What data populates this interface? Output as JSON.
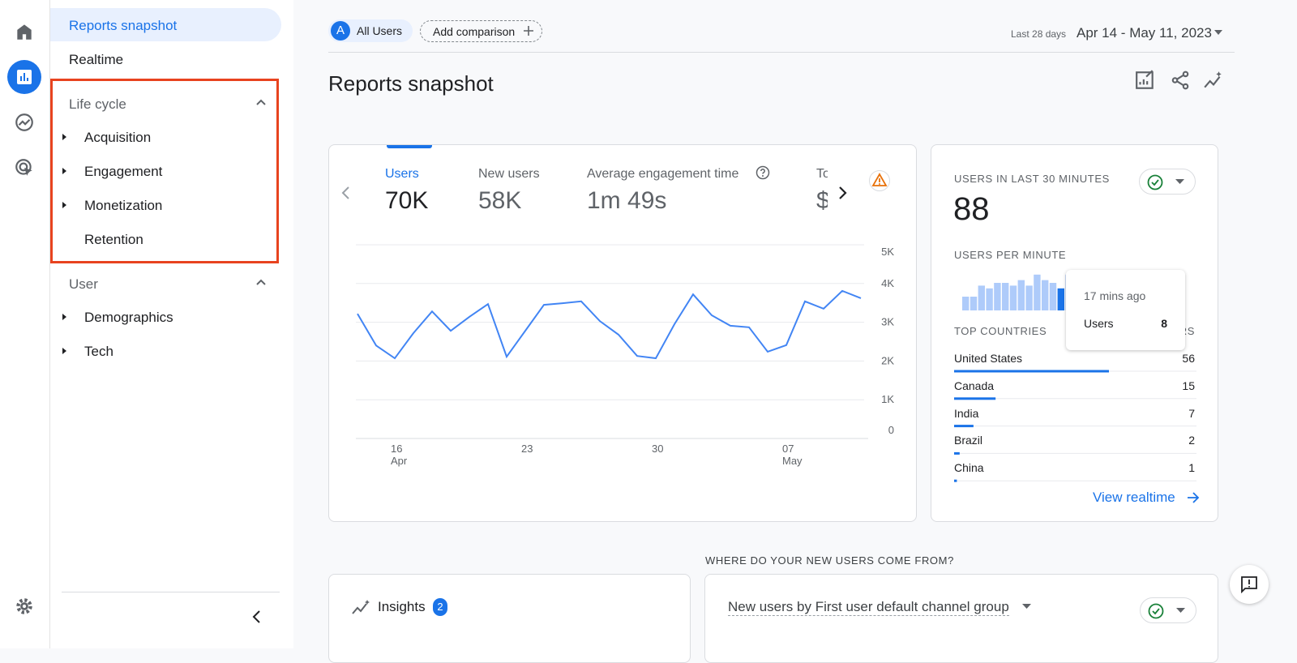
{
  "sidebar": {
    "top_items": [
      "Reports snapshot",
      "Realtime"
    ],
    "sections": [
      {
        "title": "Life cycle",
        "items": [
          "Acquisition",
          "Engagement",
          "Monetization",
          "Retention"
        ]
      },
      {
        "title": "User",
        "items": [
          "Demographics",
          "Tech"
        ]
      }
    ]
  },
  "header": {
    "segment_badge": "A",
    "segment": "All Users",
    "add_comparison": "Add comparison",
    "date_label": "Last 28 days",
    "date_range": "Apr 14 - May 11, 2023"
  },
  "page_title": "Reports snapshot",
  "metrics": [
    {
      "label": "Users",
      "value": "70K"
    },
    {
      "label": "New users",
      "value": "58K"
    },
    {
      "label": "Average engagement time",
      "value": "1m 49s"
    },
    {
      "label": "To",
      "value": "$"
    }
  ],
  "chart_data": {
    "type": "line",
    "categories": [
      null,
      null,
      "16",
      null,
      null,
      null,
      null,
      null,
      null,
      "23",
      null,
      null,
      null,
      null,
      null,
      null,
      "30",
      null,
      null,
      null,
      null,
      null,
      null,
      "07",
      null,
      null,
      null,
      null
    ],
    "category_months": [
      null,
      null,
      "Apr",
      null,
      null,
      null,
      null,
      null,
      null,
      null,
      null,
      null,
      null,
      null,
      null,
      null,
      null,
      null,
      null,
      null,
      null,
      null,
      null,
      "May",
      null,
      null,
      null,
      null
    ],
    "series": [
      {
        "name": "Users",
        "color": "#4285f4",
        "values": [
          3220,
          2400,
          2070,
          2720,
          3280,
          2780,
          3140,
          3470,
          2110,
          2780,
          3450,
          3490,
          3540,
          3030,
          2680,
          2130,
          2070,
          2950,
          3720,
          3180,
          2910,
          2870,
          2240,
          2410,
          3540,
          3350,
          3810,
          3620
        ]
      }
    ],
    "ylim": [
      0,
      5000
    ],
    "yticks": [
      0,
      {
        "value": 1000,
        "label": "1K"
      },
      {
        "value": 2000,
        "label": "2K"
      },
      {
        "value": 3000,
        "label": "3K"
      },
      {
        "value": 4000,
        "label": "4K"
      },
      {
        "value": 5000,
        "label": "5K"
      }
    ],
    "grid": true
  },
  "realtime": {
    "title": "USERS IN LAST 30 MINUTES",
    "value": "88",
    "per_minute_title": "USERS PER MINUTE",
    "per_minute_values": [
      5,
      5,
      9,
      8,
      10,
      10,
      9,
      11,
      9,
      13,
      11,
      10,
      8,
      13
    ],
    "highlight_index": 12,
    "tooltip": {
      "time": "17 mins ago",
      "label": "Users",
      "value": 8
    },
    "countries_title": "TOP COUNTRIES",
    "users_header": "USERS",
    "countries": [
      {
        "name": "United States",
        "users": 56
      },
      {
        "name": "Canada",
        "users": 15
      },
      {
        "name": "India",
        "users": 7
      },
      {
        "name": "Brazil",
        "users": 2
      },
      {
        "name": "China",
        "users": 1
      }
    ],
    "link": "View realtime"
  },
  "bottom": {
    "section_title": "WHERE DO YOUR NEW USERS COME FROM?",
    "insights": "Insights",
    "insights_count": 2,
    "channel_title": "New users by First user default channel group"
  }
}
